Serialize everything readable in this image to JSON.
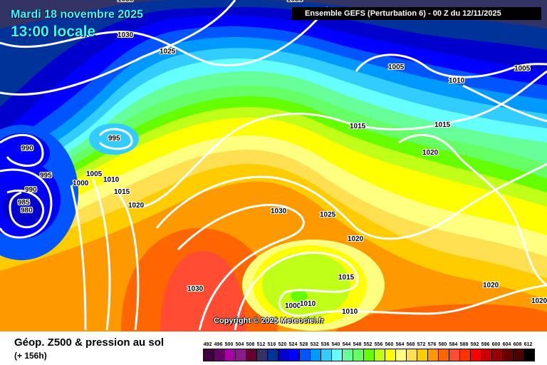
{
  "header": {
    "date": "Mardi 18 novembre 2025",
    "time": "13:00 locale",
    "run": "Ensemble GEFS  (Perturbation 6)  -  00 Z du 12/11/2025"
  },
  "footer": {
    "title": "Géop. Z500 & pression au sol",
    "lead": "(+ 156h)",
    "copyright": "Copyright © 2025 Meteociel.fr"
  },
  "isobars": [
    "1030",
    "1030",
    "1030",
    "1025",
    "1005",
    "1010",
    "1005",
    "995",
    "990",
    "995",
    "1005",
    "1010",
    "1000",
    "990",
    "1015",
    "985",
    "980",
    "1020",
    "1015",
    "1015",
    "1020",
    "1030",
    "1025",
    "1020",
    "1015",
    "1030",
    "1000",
    "1010",
    "1010",
    "1020",
    "1020"
  ],
  "legend": {
    "values": [
      492,
      496,
      500,
      504,
      508,
      512,
      516,
      520,
      524,
      528,
      532,
      536,
      540,
      544,
      548,
      552,
      556,
      560,
      564,
      568,
      572,
      576,
      580,
      584,
      588,
      592,
      596,
      600,
      604,
      608,
      612
    ],
    "colors": [
      "#3f0040",
      "#660066",
      "#aa00aa",
      "#8b1a8b",
      "#660033",
      "#333366",
      "#003399",
      "#0000cc",
      "#0000ff",
      "#0055ff",
      "#0099ff",
      "#33ccff",
      "#66ffff",
      "#66ff99",
      "#66ff66",
      "#66ff00",
      "#c0ff18",
      "#ffff00",
      "#ffff80",
      "#ffe050",
      "#ffcc00",
      "#ff9900",
      "#ff6600",
      "#ff4c33",
      "#ff3300",
      "#ff0000",
      "#cc0000",
      "#990000",
      "#660000",
      "#4d0000",
      "#000000"
    ]
  }
}
